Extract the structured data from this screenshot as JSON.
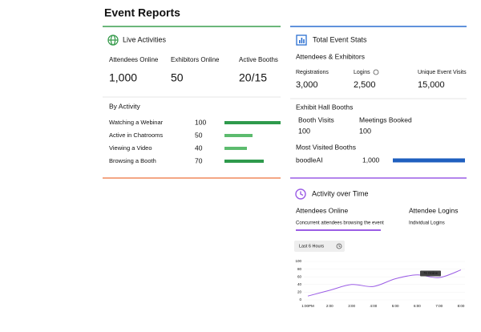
{
  "header": {
    "title": "Event Reports"
  },
  "live_activities": {
    "title": "Live Activities",
    "stats": [
      {
        "label": "Attendees Online",
        "value": "1,000"
      },
      {
        "label": "Exhibitors Online",
        "value": "50"
      },
      {
        "label": "Active Booths",
        "value": "20/15"
      }
    ],
    "by_activity": {
      "title": "By Activity",
      "rows": [
        {
          "name": "Watching a Webinar",
          "value": 100
        },
        {
          "name": "Active in Chatrooms",
          "value": 50
        },
        {
          "name": "Viewing a Video",
          "value": 40
        },
        {
          "name": "Browsing a Booth",
          "value": 70
        }
      ]
    }
  },
  "total_event_stats": {
    "title": "Total Event Stats",
    "section": "Attendees & Exhibitors",
    "stats": [
      {
        "label": "Registrations",
        "value": "3,000"
      },
      {
        "label": "Logins",
        "value": "2,500"
      },
      {
        "label": "Unique Event Visits",
        "value": "15,000"
      }
    ],
    "exhibit_hall": {
      "title": "Exhibit Hall Booths",
      "stats": [
        {
          "label": "Booth Visits",
          "value": 100
        },
        {
          "label": "Meetings Booked",
          "value": 100
        }
      ]
    },
    "most_visited": {
      "title": "Most Visited Booths",
      "rows": [
        {
          "name": "boodleAI",
          "value": 1000,
          "value_label": "1,000"
        }
      ]
    }
  },
  "activity_over_time": {
    "title": "Activity over Time",
    "tabs": [
      {
        "label": "Attendees Online",
        "description": "Concurrent attendees browsing the event"
      },
      {
        "label": "Attendee Logins",
        "description": "Individual Logins"
      }
    ],
    "range_button": "Last 6 Hours",
    "chart": {
      "type": "line",
      "x": [
        "1:00PM",
        "2:00",
        "3:00",
        "4:00",
        "5:00",
        "6:00",
        "7:00",
        "8:00"
      ],
      "values": [
        10,
        25,
        40,
        35,
        55,
        65,
        58,
        78
      ],
      "ylim": [
        0,
        100
      ],
      "yticks": [
        0,
        20,
        40,
        60,
        80,
        100
      ],
      "tooltip": "76 Online",
      "color": "#9b5de5"
    }
  }
}
